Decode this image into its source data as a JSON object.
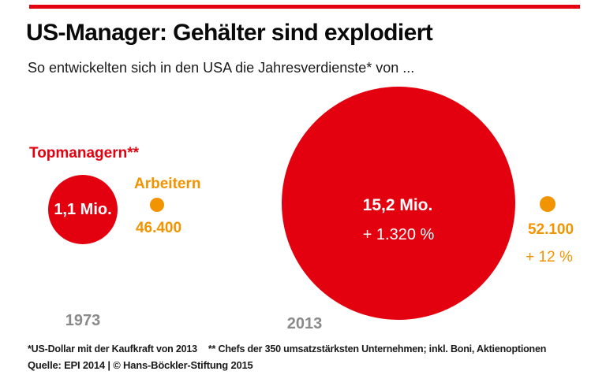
{
  "header": {
    "title": "US-Manager: Gehälter sind explodiert",
    "subtitle": "So entwickelten sich in den USA die Jahresverdienste* von ..."
  },
  "chart_data": {
    "type": "bubble",
    "title": "US-Manager: Gehälter sind explodiert",
    "subtitle": "So entwickelten sich in den USA die Jahresverdienste* von ...",
    "categories": [
      "1973",
      "2013"
    ],
    "series": [
      {
        "name": "Topmanagern**",
        "color": "#e3000f",
        "values": [
          {
            "year": "1973",
            "value": 1100000,
            "label": "1,1 Mio."
          },
          {
            "year": "2013",
            "value": 15200000,
            "label": "15,2 Mio.",
            "change": "+ 1.320 %"
          }
        ]
      },
      {
        "name": "Arbeitern",
        "color": "#f29400",
        "values": [
          {
            "year": "1973",
            "value": 46400,
            "label": "46.400"
          },
          {
            "year": "2013",
            "value": 52100,
            "label": "52.100",
            "change": "+ 12 %"
          }
        ]
      }
    ],
    "layout": "circle area proportional to value; 1973 pair left, 2013 pair right; no axes or gridlines"
  },
  "footnotes": {
    "note1": "*US-Dollar mit der Kaufkraft von 2013",
    "note2": "** Chefs der 350 umsatzstärksten Unternehmen; inkl. Boni, Aktienoptionen",
    "source": "Quelle: EPI 2014 | © Hans-Böckler-Stiftung 2015"
  },
  "colors": {
    "red": "#e3000f",
    "orange": "#f29400",
    "year_gray": "#8a8a8a",
    "text": "#1a1a1a"
  }
}
